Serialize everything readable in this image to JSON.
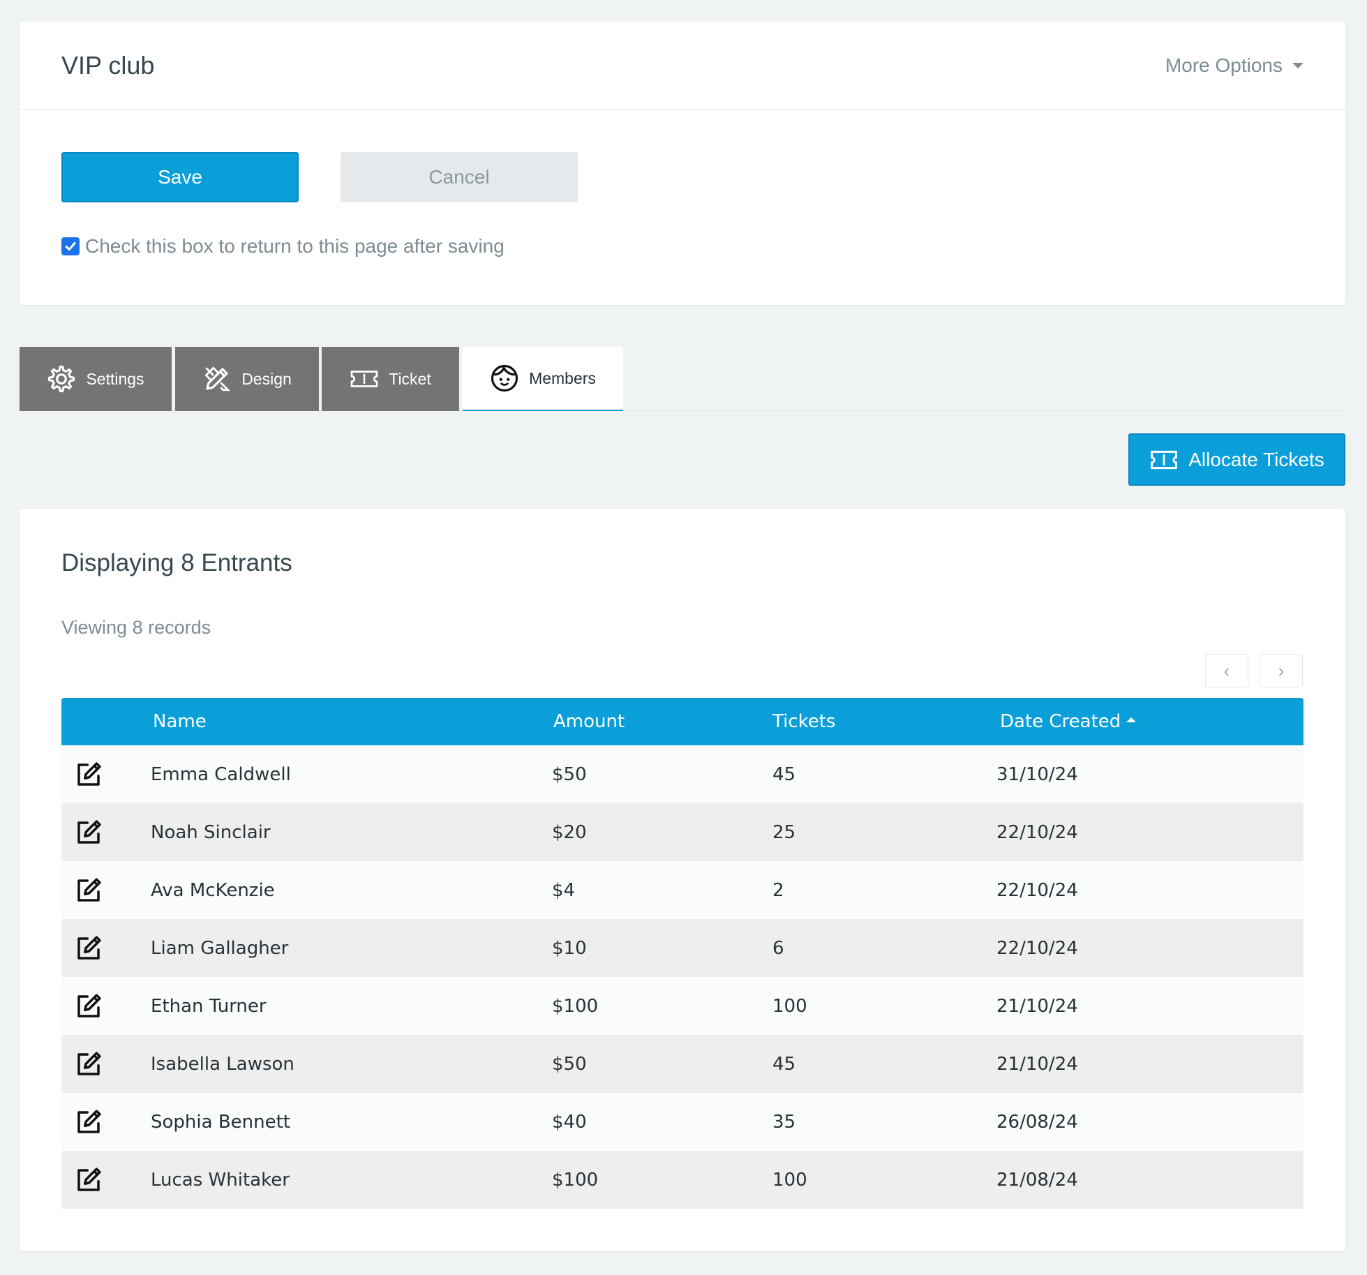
{
  "header": {
    "title": "VIP club",
    "more_options": "More Options"
  },
  "actions": {
    "save_label": "Save",
    "cancel_label": "Cancel",
    "return_checkbox_label": "Check this box to return to this page after saving"
  },
  "tabs": [
    {
      "label": "Settings",
      "icon": "gear-icon"
    },
    {
      "label": "Design",
      "icon": "pencil-ruler-icon"
    },
    {
      "label": "Ticket",
      "icon": "ticket-icon"
    },
    {
      "label": "Members",
      "icon": "face-icon"
    }
  ],
  "allocate_label": "Allocate Tickets",
  "members": {
    "section_title": "Displaying 8 Entrants",
    "records_info": "Viewing 8 records",
    "pager_prev": "‹",
    "pager_next": "›",
    "columns": {
      "name": "Name",
      "amount": "Amount",
      "tickets": "Tickets",
      "date_created": "Date Created"
    },
    "rows": [
      {
        "name": "Emma Caldwell",
        "amount": "$50",
        "tickets": "45",
        "date": "31/10/24"
      },
      {
        "name": "Noah Sinclair",
        "amount": "$20",
        "tickets": "25",
        "date": "22/10/24"
      },
      {
        "name": "Ava McKenzie",
        "amount": "$4",
        "tickets": "2",
        "date": "22/10/24"
      },
      {
        "name": "Liam Gallagher",
        "amount": "$10",
        "tickets": "6",
        "date": "22/10/24"
      },
      {
        "name": "Ethan Turner",
        "amount": "$100",
        "tickets": "100",
        "date": "21/10/24"
      },
      {
        "name": "Isabella Lawson",
        "amount": "$50",
        "tickets": "45",
        "date": "21/10/24"
      },
      {
        "name": "Sophia Bennett",
        "amount": "$40",
        "tickets": "35",
        "date": "26/08/24"
      },
      {
        "name": "Lucas Whitaker",
        "amount": "$100",
        "tickets": "100",
        "date": "21/08/24"
      }
    ]
  },
  "colors": {
    "accent": "#0a9fd9",
    "tab_inactive": "#747474",
    "background": "#f0f3f4"
  }
}
